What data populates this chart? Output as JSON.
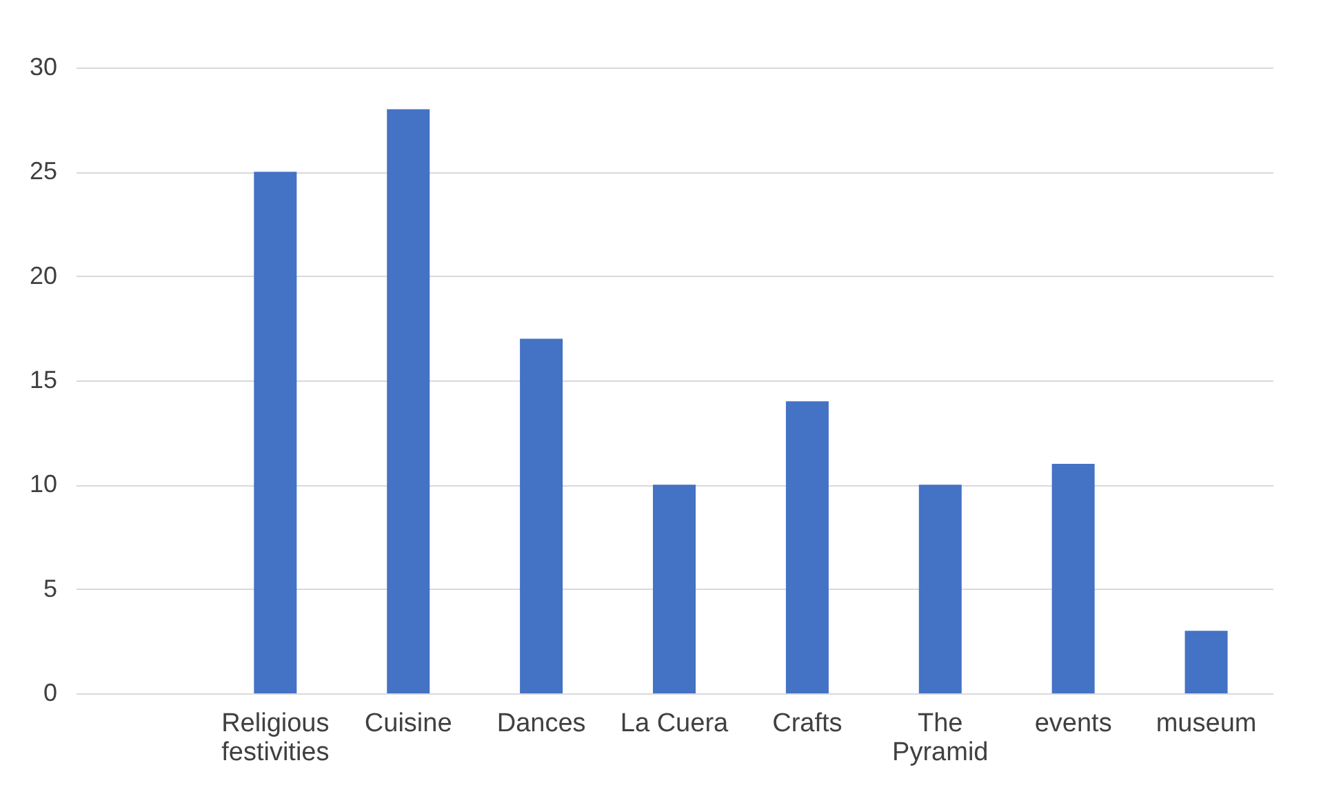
{
  "chart_data": {
    "type": "bar",
    "categories": [
      null,
      "Religious festivities",
      "Cuisine",
      "Dances",
      "La Cuera",
      "Crafts",
      "The Pyramid",
      "events",
      "museum"
    ],
    "values": [
      null,
      25,
      28,
      17,
      10,
      14,
      10,
      11,
      3
    ],
    "color": "#4472c4",
    "ylim": [
      0,
      30
    ],
    "yticks": [
      0,
      5,
      10,
      15,
      20,
      25,
      30
    ],
    "grid": "y"
  }
}
